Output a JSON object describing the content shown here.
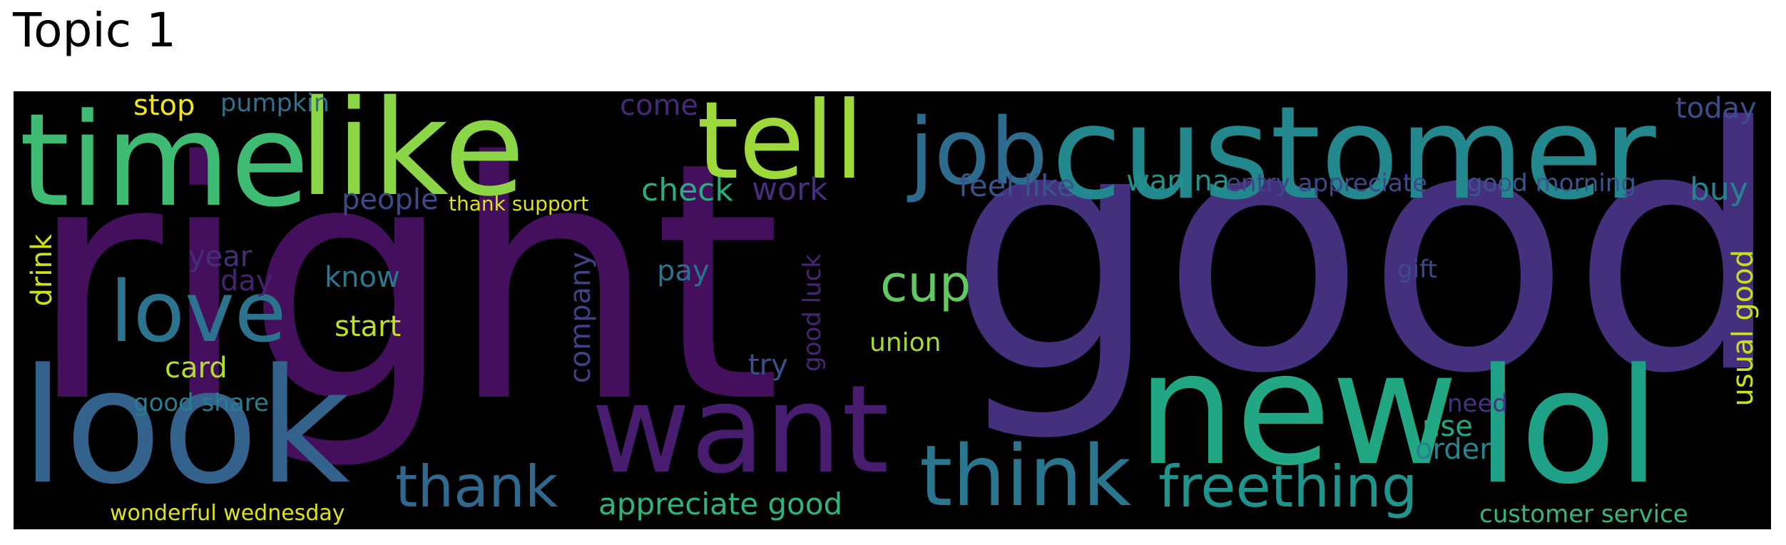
{
  "title": "Topic 1",
  "colors": {
    "background": "#000000",
    "palette": "viridis"
  },
  "words": [
    {
      "key": "right",
      "text": "right",
      "color": "#440f5c"
    },
    {
      "key": "good",
      "text": "good",
      "color": "#45307e"
    },
    {
      "key": "customer",
      "text": "customer",
      "color": "#23888e"
    },
    {
      "key": "time",
      "text": "time",
      "color": "#3fbc73"
    },
    {
      "key": "like",
      "text": "like",
      "color": "#8bd646"
    },
    {
      "key": "tell",
      "text": "tell",
      "color": "#9dd93b"
    },
    {
      "key": "job",
      "text": "job",
      "color": "#2e6c8e"
    },
    {
      "key": "new",
      "text": "new",
      "color": "#22a785"
    },
    {
      "key": "lol",
      "text": "lol",
      "color": "#1fa187"
    },
    {
      "key": "look",
      "text": "look",
      "color": "#33638d"
    },
    {
      "key": "want",
      "text": "want",
      "color": "#481d6f"
    },
    {
      "key": "love",
      "text": "love",
      "color": "#2c738e"
    },
    {
      "key": "think",
      "text": "think",
      "color": "#2a768e"
    },
    {
      "key": "freething",
      "text": "freething",
      "color": "#1f948c"
    },
    {
      "key": "thank",
      "text": "thank",
      "color": "#30688e"
    },
    {
      "key": "cup",
      "text": "cup",
      "color": "#60ca60"
    },
    {
      "key": "appreciate_good",
      "text": "appreciate good",
      "color": "#2fb47c"
    },
    {
      "key": "today",
      "text": "today",
      "color": "#3d4e8a"
    },
    {
      "key": "stop",
      "text": "stop",
      "color": "#f1e51d"
    },
    {
      "key": "pumpkin",
      "text": "pumpkin",
      "color": "#2d718e"
    },
    {
      "key": "come",
      "text": "come",
      "color": "#482878"
    },
    {
      "key": "check",
      "text": "check",
      "color": "#27ad81"
    },
    {
      "key": "work",
      "text": "work",
      "color": "#472d7b"
    },
    {
      "key": "feel_like",
      "text": "feel like",
      "color": "#3b528b"
    },
    {
      "key": "wan_na",
      "text": "wan na",
      "color": "#20938c"
    },
    {
      "key": "entry_appreciate",
      "text": "entry appreciate",
      "color": "#404688"
    },
    {
      "key": "good_morning",
      "text": "good morning",
      "color": "#39558c"
    },
    {
      "key": "buy",
      "text": "buy",
      "color": "#26828e"
    },
    {
      "key": "people",
      "text": "people",
      "color": "#3e4989"
    },
    {
      "key": "thank_support",
      "text": "thank support",
      "color": "#dde318"
    },
    {
      "key": "drink",
      "text": "drink",
      "color": "#d0e11c"
    },
    {
      "key": "year",
      "text": "year",
      "color": "#472c7a"
    },
    {
      "key": "day",
      "text": "day",
      "color": "#482173"
    },
    {
      "key": "know",
      "text": "know",
      "color": "#2a788e"
    },
    {
      "key": "start",
      "text": "start",
      "color": "#c2df23"
    },
    {
      "key": "card",
      "text": "card",
      "color": "#b5de2b"
    },
    {
      "key": "good_share",
      "text": "good share",
      "color": "#287d8e"
    },
    {
      "key": "company",
      "text": "company",
      "color": "#424086"
    },
    {
      "key": "pay",
      "text": "pay",
      "color": "#2c728e"
    },
    {
      "key": "good_luck",
      "text": "good luck",
      "color": "#482475"
    },
    {
      "key": "try",
      "text": "try",
      "color": "#3b518b"
    },
    {
      "key": "union",
      "text": "union",
      "color": "#a2da37"
    },
    {
      "key": "gift",
      "text": "gift",
      "color": "#3e4a89"
    },
    {
      "key": "usual_good",
      "text": "usual good",
      "color": "#c8e020"
    },
    {
      "key": "need",
      "text": "need",
      "color": "#46327e"
    },
    {
      "key": "use",
      "text": "use",
      "color": "#22a884"
    },
    {
      "key": "order",
      "text": "order",
      "color": "#25848e"
    },
    {
      "key": "customer_service",
      "text": "customer service",
      "color": "#35b779"
    },
    {
      "key": "wonderful_wednesday",
      "text": "wonderful wednesday",
      "color": "#dde318"
    }
  ]
}
